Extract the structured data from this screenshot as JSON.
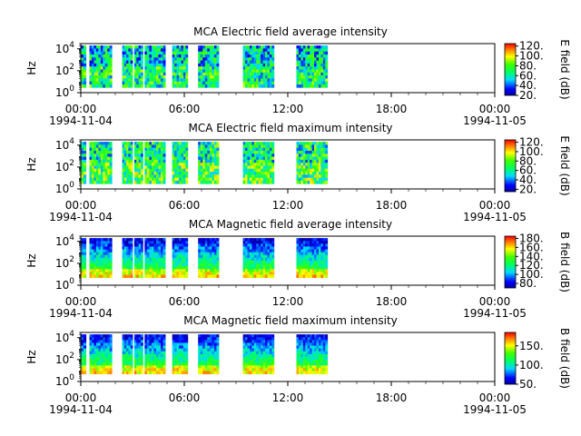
{
  "figure": {
    "x_tick_labels": [
      "00:00",
      "06:00",
      "12:00",
      "18:00",
      "00:00"
    ],
    "x_date_labels": [
      "1994-11-04",
      "1994-11-05"
    ],
    "y_tick_labels": [
      "10",
      "10",
      "10"
    ],
    "y_tick_exponents": [
      "0",
      "2",
      "4"
    ]
  },
  "chart_data": [
    {
      "type": "heatmap",
      "title": "MCA  Electric field average intensity",
      "ylabel": "Hz",
      "colorbar_label": "E field (dB)",
      "colorbar_ticks": [
        "20.",
        "40.",
        "60.",
        "80.",
        "100.",
        "120."
      ],
      "colorbar_range": [
        20,
        125
      ],
      "x_range": [
        "1994-11-04 00:00",
        "1994-11-05 00:00"
      ],
      "y_scale": "log",
      "y_range": [
        1,
        30000
      ],
      "data_intervals_hours": [
        [
          0.0,
          0.3
        ],
        [
          0.5,
          1.8
        ],
        [
          2.4,
          3.0
        ],
        [
          3.1,
          3.6
        ],
        [
          3.7,
          4.9
        ],
        [
          5.3,
          6.2
        ],
        [
          6.8,
          8.0
        ],
        [
          9.4,
          11.2
        ],
        [
          12.5,
          14.3
        ]
      ],
      "freq_range_hz": [
        3,
        20000
      ]
    },
    {
      "type": "heatmap",
      "title": "MCA  Electric field maximum intensity",
      "ylabel": "Hz",
      "colorbar_label": "E field (dB)",
      "colorbar_ticks": [
        "20.",
        "40.",
        "60.",
        "80.",
        "100.",
        "120."
      ],
      "colorbar_range": [
        15,
        125
      ],
      "x_range": [
        "1994-11-04 00:00",
        "1994-11-05 00:00"
      ],
      "y_scale": "log",
      "y_range": [
        1,
        30000
      ],
      "data_intervals_hours": [
        [
          0.0,
          0.3
        ],
        [
          0.5,
          1.8
        ],
        [
          2.4,
          3.0
        ],
        [
          3.1,
          3.6
        ],
        [
          3.7,
          4.9
        ],
        [
          5.3,
          6.2
        ],
        [
          6.8,
          8.0
        ],
        [
          9.4,
          11.2
        ],
        [
          12.5,
          14.3
        ]
      ],
      "freq_range_hz": [
        3,
        20000
      ]
    },
    {
      "type": "heatmap",
      "title": "MCA  Magnetic field average intensity",
      "ylabel": "Hz",
      "colorbar_label": "B field (dB)",
      "colorbar_ticks": [
        "80.",
        "100.",
        "120.",
        "140.",
        "160.",
        "180."
      ],
      "colorbar_range": [
        70,
        185
      ],
      "x_range": [
        "1994-11-04 00:00",
        "1994-11-05 00:00"
      ],
      "y_scale": "log",
      "y_range": [
        1,
        30000
      ],
      "data_intervals_hours": [
        [
          0.0,
          0.3
        ],
        [
          0.5,
          1.8
        ],
        [
          2.4,
          3.0
        ],
        [
          3.1,
          3.6
        ],
        [
          3.7,
          4.9
        ],
        [
          5.3,
          6.2
        ],
        [
          6.8,
          8.0
        ],
        [
          9.4,
          11.2
        ],
        [
          12.5,
          14.3
        ]
      ],
      "freq_range_hz": [
        5,
        20000
      ]
    },
    {
      "type": "heatmap",
      "title": "MCA  Magnetic field maximum intensity",
      "ylabel": "Hz",
      "colorbar_label": "B field (dB)",
      "colorbar_ticks": [
        "50.",
        "100.",
        "150."
      ],
      "colorbar_range": [
        50,
        185
      ],
      "x_range": [
        "1994-11-04 00:00",
        "1994-11-05 00:00"
      ],
      "y_scale": "log",
      "y_range": [
        1,
        30000
      ],
      "data_intervals_hours": [
        [
          0.0,
          0.3
        ],
        [
          0.5,
          1.8
        ],
        [
          2.4,
          3.0
        ],
        [
          3.1,
          3.6
        ],
        [
          3.7,
          4.9
        ],
        [
          5.3,
          6.2
        ],
        [
          6.8,
          8.0
        ],
        [
          9.4,
          11.2
        ],
        [
          12.5,
          14.3
        ]
      ],
      "freq_range_hz": [
        5,
        20000
      ]
    }
  ]
}
